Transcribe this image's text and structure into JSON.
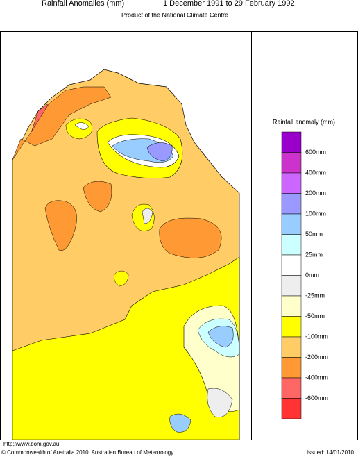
{
  "header": {
    "title": "Rainfall Anomalies (mm)",
    "period": "1 December 1991 to 29 February 1992",
    "subtitle": "Product of the National Climate Centre"
  },
  "legend": {
    "title": "Rainfall anomaly (mm)",
    "colors": [
      "#9900cc",
      "#cc33cc",
      "#cc66ff",
      "#9999ff",
      "#99ccff",
      "#ccffff",
      "#ffffff",
      "#eeeeee",
      "#ffffcc",
      "#ffff00",
      "#ffcc66",
      "#ff9933",
      "#ff6666",
      "#ff3333"
    ],
    "labels": [
      "600mm",
      "400mm",
      "200mm",
      "100mm",
      "50mm",
      "25mm",
      "0mm",
      "-25mm",
      "-50mm",
      "-100mm",
      "-200mm",
      "-400mm",
      "-600mm"
    ]
  },
  "footer": {
    "url": "http://www.bom.gov.au",
    "copyright": "© Commonwealth of Australia 2010, Australian Bureau of Meteorology",
    "issued": "Issued: 14/01/2010"
  }
}
